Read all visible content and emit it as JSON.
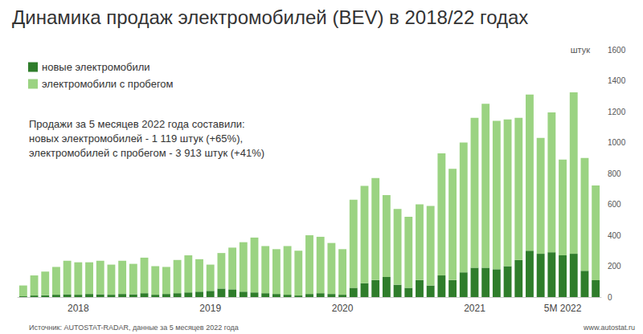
{
  "chart_data": {
    "type": "bar",
    "title": "Динамика продаж электромобилей (BEV) в 2018/22 годах",
    "categories": [
      null,
      null,
      null,
      null,
      null,
      "2018",
      null,
      null,
      null,
      null,
      null,
      null,
      null,
      null,
      null,
      null,
      null,
      "2019",
      null,
      null,
      null,
      null,
      null,
      null,
      null,
      null,
      null,
      null,
      null,
      "2020",
      null,
      null,
      null,
      null,
      null,
      null,
      null,
      null,
      null,
      null,
      null,
      "2021",
      null,
      null,
      null,
      null,
      null,
      null,
      null,
      "5M 2022",
      null,
      null,
      null
    ],
    "series": [
      {
        "name": "новые электромобили",
        "color": "#2f7d2b",
        "values": [
          5,
          10,
          12,
          15,
          18,
          15,
          20,
          18,
          15,
          20,
          18,
          25,
          15,
          20,
          25,
          30,
          35,
          40,
          55,
          50,
          35,
          30,
          25,
          20,
          15,
          10,
          20,
          25,
          20,
          15,
          60,
          90,
          110,
          130,
          80,
          60,
          110,
          75,
          140,
          110,
          160,
          190,
          190,
          180,
          200,
          240,
          300,
          280,
          290,
          270,
          280,
          170,
          109
        ]
      },
      {
        "name": "электромобили с пробегом",
        "color": "#9bd382",
        "values": [
          70,
          130,
          153,
          180,
          217,
          210,
          205,
          217,
          195,
          215,
          197,
          230,
          185,
          175,
          215,
          240,
          210,
          170,
          230,
          270,
          320,
          355,
          305,
          290,
          315,
          290,
          380,
          365,
          330,
          295,
          570,
          630,
          660,
          530,
          490,
          460,
          490,
          515,
          790,
          720,
          840,
          970,
          1060,
          960,
          950,
          920,
          1010,
          750,
          905,
          620,
          1045,
          730,
          613
        ]
      }
    ],
    "stacked": true,
    "ylim": [
      0,
      1600
    ],
    "yticks": [
      0,
      200,
      400,
      600,
      800,
      1000,
      1200,
      1400,
      1600
    ],
    "grid": false,
    "legend": "top-left",
    "unit_label": "штук",
    "annotation": [
      "Продажи за 5 месяцев 2022 года составили:",
      "новых электромобилей - 1 119 штук (+65%),",
      "электромобилей с пробегом - 3 913 штук (+41%)"
    ],
    "source": "Источник: AUTOSTAT-RADAR, данные за 5 месяцев 2022 года",
    "footer": "www.autostat.ru"
  }
}
